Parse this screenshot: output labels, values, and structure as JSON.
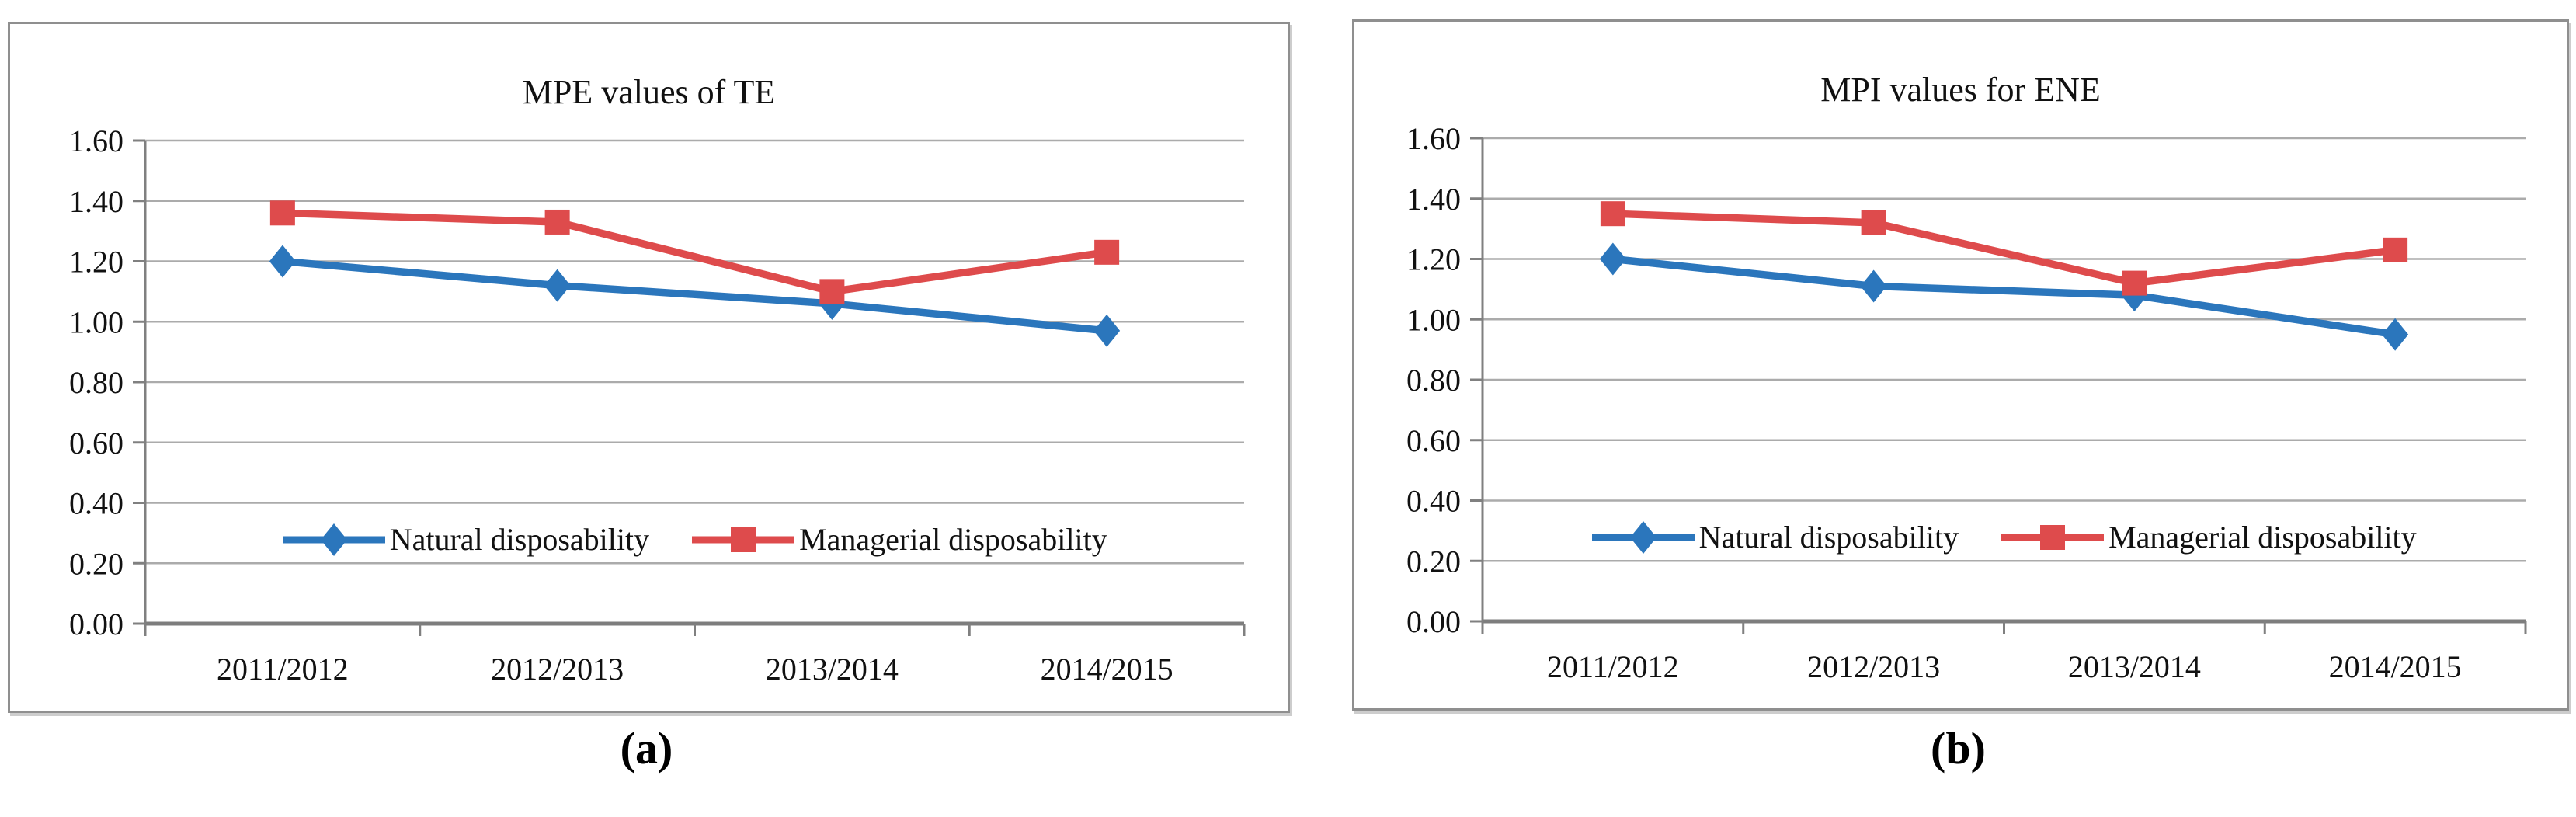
{
  "figure": {
    "captions": [
      "(a)",
      "(b)"
    ],
    "colors": {
      "grid": "#ababab",
      "axis": "#7d7d7d",
      "tick": "#808080",
      "panel_border": "#8f8f8f",
      "natural_blue": "#2B76BC",
      "managerial_red": "#DE4B4C"
    }
  },
  "chart_data": [
    {
      "type": "line",
      "title": "MPE values of TE",
      "categories": [
        "2011/2012",
        "2012/2013",
        "2013/2014",
        "2014/2015"
      ],
      "series": [
        {
          "name": "Natural disposability",
          "color": "#2B76BC",
          "marker": "diamond",
          "values": [
            1.2,
            1.12,
            1.06,
            0.97
          ]
        },
        {
          "name": "Managerial disposability",
          "color": "#DE4B4C",
          "marker": "square",
          "values": [
            1.36,
            1.33,
            1.1,
            1.23
          ]
        }
      ],
      "ylim": [
        0.0,
        1.6
      ],
      "ytick_step": 0.2,
      "ytick_labels": [
        "0.00",
        "0.20",
        "0.40",
        "0.60",
        "0.80",
        "1.00",
        "1.20",
        "1.40",
        "1.60"
      ],
      "grid": true,
      "legend_position": "inside-bottom-center"
    },
    {
      "type": "line",
      "title": "MPI values for ENE",
      "categories": [
        "2011/2012",
        "2012/2013",
        "2013/2014",
        "2014/2015"
      ],
      "series": [
        {
          "name": "Natural disposability",
          "color": "#2B76BC",
          "marker": "diamond",
          "values": [
            1.2,
            1.11,
            1.08,
            0.95
          ]
        },
        {
          "name": "Managerial disposability",
          "color": "#DE4B4C",
          "marker": "square",
          "values": [
            1.35,
            1.32,
            1.12,
            1.23
          ]
        }
      ],
      "ylim": [
        0.0,
        1.6
      ],
      "ytick_step": 0.2,
      "ytick_labels": [
        "0.00",
        "0.20",
        "0.40",
        "0.60",
        "0.80",
        "1.00",
        "1.20",
        "1.40",
        "1.60"
      ],
      "grid": true,
      "legend_position": "inside-bottom-center"
    }
  ]
}
